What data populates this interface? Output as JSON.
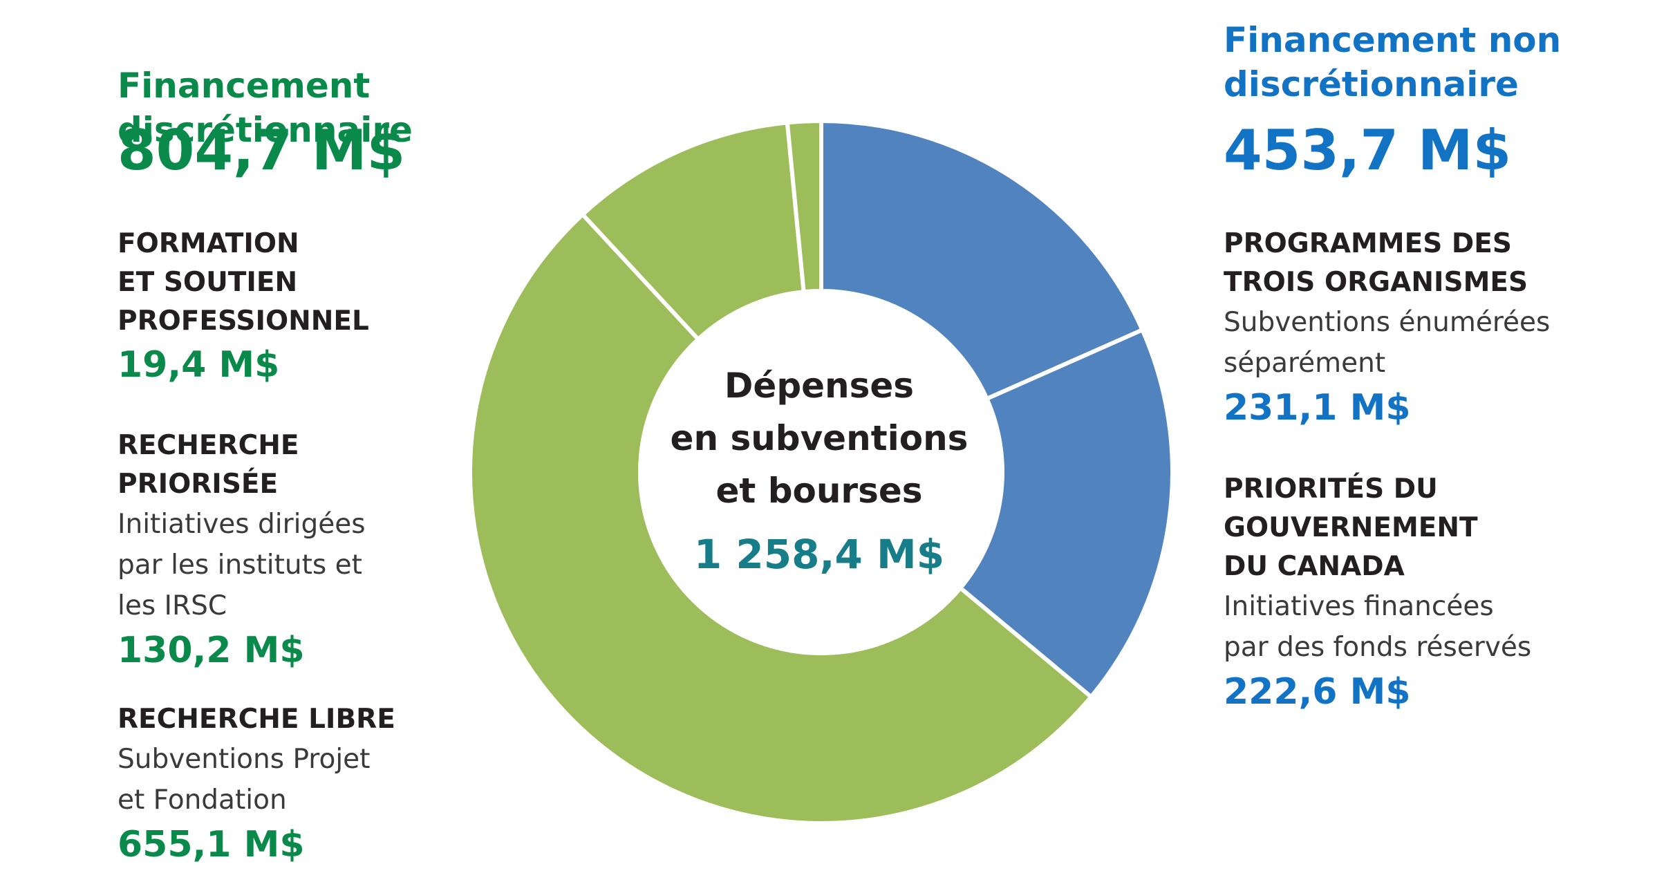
{
  "discretionary": {
    "title": "Financement discrétionnaire",
    "total": "804,7 M$",
    "color": "#0a8a4a",
    "categories": [
      {
        "name": "FORMATION\nET SOUTIEN\nPROFESSIONNEL",
        "desc": "",
        "value_label": "19,4 M$"
      },
      {
        "name": "RECHERCHE\nPRIORISÉE",
        "desc": "Initiatives dirigées\npar les instituts et\nles IRSC",
        "value_label": "130,2 M$"
      },
      {
        "name": "RECHERCHE LIBRE",
        "desc": "Subventions Projet\net Fondation",
        "value_label": "655,1 M$"
      }
    ]
  },
  "non_discretionary": {
    "title": "Financement non\ndiscrétionnaire",
    "total": "453,7 M$",
    "color": "#1273c5",
    "categories": [
      {
        "name": "PROGRAMMES DES\nTROIS ORGANISMES",
        "desc": "Subventions énumérées\nséparément",
        "value_label": "231,1 M$"
      },
      {
        "name": "PRIORITÉS DU\nGOUVERNEMENT\nDU CANADA",
        "desc": "Initiatives financées\npar des fonds réservés",
        "value_label": "222,6 M$"
      }
    ]
  },
  "center": {
    "label": "Dépenses\nen subventions\net bourses",
    "total": "1 258,4 M$"
  },
  "chart_data": {
    "type": "pie",
    "variant": "donut",
    "start": "top, clockwise",
    "slices": [
      {
        "label": "PROGRAMMES DES TROIS ORGANISMES",
        "value": 231.1,
        "color": "#5183bf"
      },
      {
        "label": "PRIORITÉS DU GOUVERNEMENT DU CANADA",
        "value": 222.6,
        "color": "#5183bf"
      },
      {
        "label": "RECHERCHE LIBRE",
        "value": 655.1,
        "color": "#9cbd5a"
      },
      {
        "label": "RECHERCHE PRIORISÉE",
        "value": 130.2,
        "color": "#9cbd5a"
      },
      {
        "label": "FORMATION ET SOUTIEN PROFESSIONNEL",
        "value": 19.4,
        "color": "#9cbd5a"
      }
    ],
    "total": 1258.4,
    "unit": "M$"
  }
}
